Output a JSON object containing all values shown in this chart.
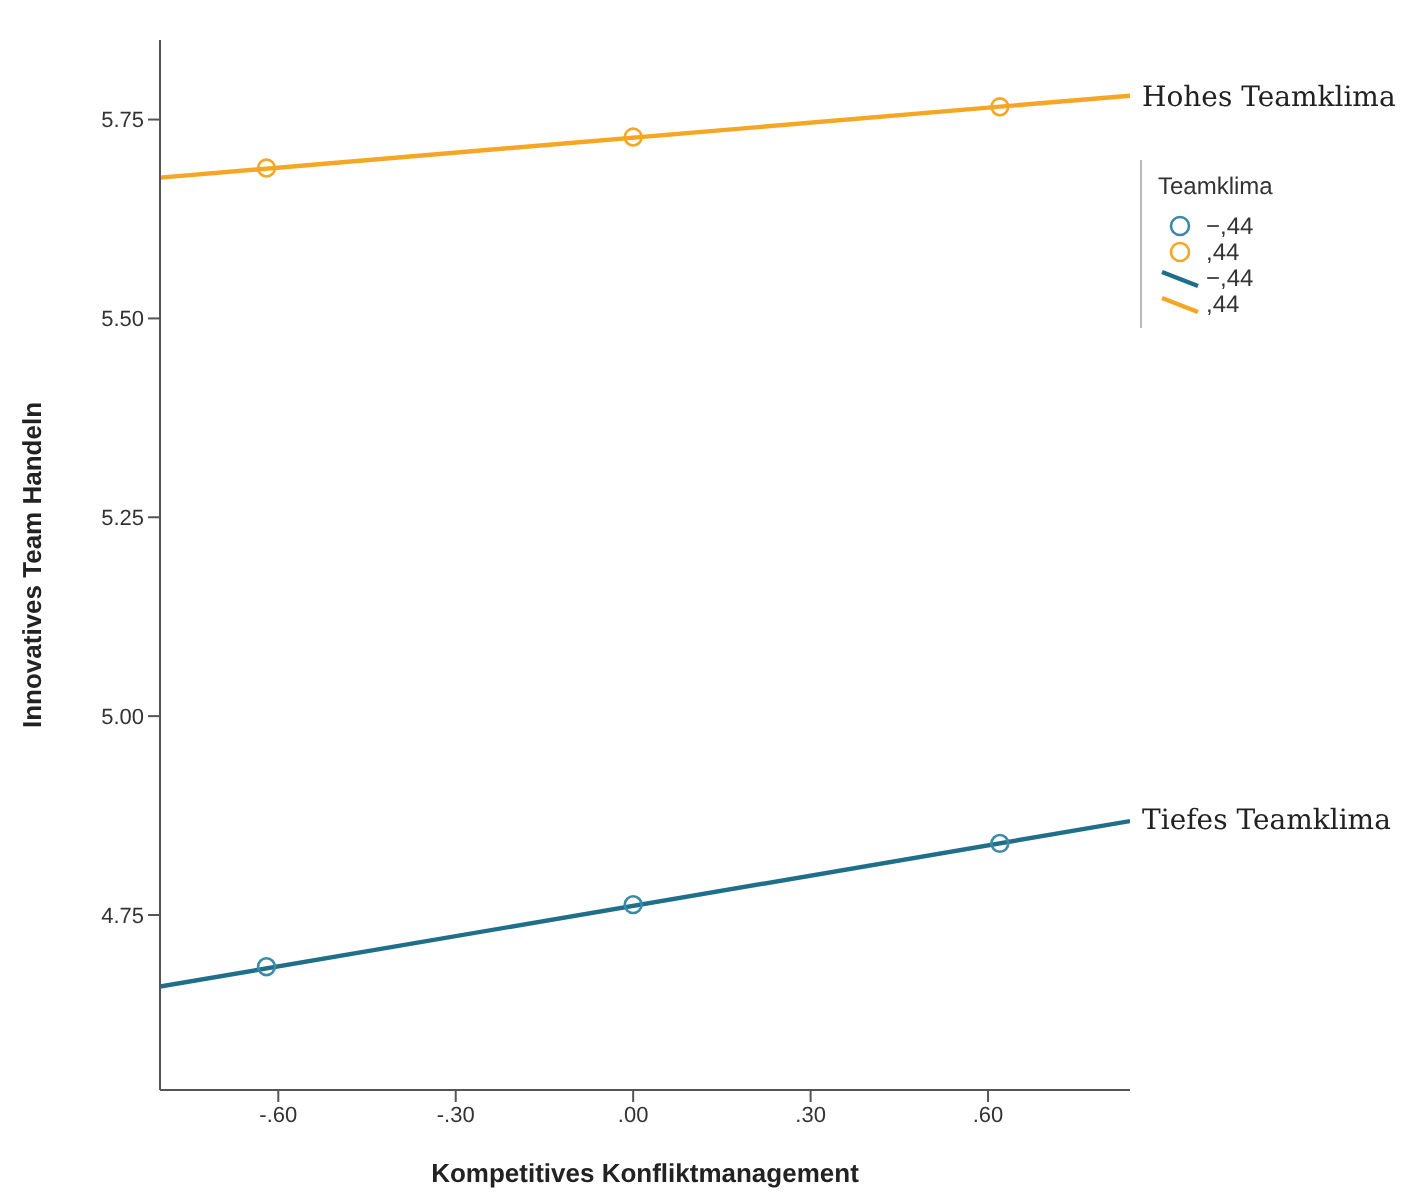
{
  "chart_data": {
    "type": "scatter",
    "xlabel": "Kompetitives Konfliktmanagement",
    "ylabel": "Innovatives Team Handeln",
    "legend_title": "Teamklima",
    "series": [
      {
        "name": "−,44",
        "color": "#3d8aa8",
        "x": [
          -0.62,
          0,
          0.62
        ],
        "values": [
          4.685,
          4.763,
          4.84
        ],
        "marker": "circle"
      },
      {
        "name": ",44",
        "color": "#f5a623",
        "x": [
          -0.62,
          0,
          0.62
        ],
        "values": [
          5.689,
          5.728,
          5.766
        ],
        "marker": "circle"
      },
      {
        "name": "−,44",
        "type": "line",
        "color": "#1f6f8b",
        "x": [
          -0.8,
          0.84
        ],
        "values": [
          4.66,
          4.868
        ],
        "marker": "none"
      },
      {
        "name": ",44",
        "type": "line",
        "color": "#f5a623",
        "x": [
          -0.8,
          0.84
        ],
        "values": [
          5.677,
          5.78
        ],
        "marker": "none"
      }
    ],
    "xlim": [
      -0.8,
      0.84
    ],
    "xticks": [
      {
        "value": -0.6,
        "label": "-.60"
      },
      {
        "value": -0.3,
        "label": "-.30"
      },
      {
        "value": 0,
        "label": ".00"
      },
      {
        "value": 0.3,
        "label": ".30"
      },
      {
        "value": 0.6,
        "label": ".60"
      }
    ],
    "ylim": [
      4.53,
      5.85
    ],
    "yticks": [
      {
        "value": 4.75,
        "label": "4.75"
      },
      {
        "value": 5,
        "label": "5.00"
      },
      {
        "value": 5.25,
        "label": "5.25"
      },
      {
        "value": 5.5,
        "label": "5.50"
      },
      {
        "value": 5.75,
        "label": "5.75"
      }
    ],
    "annotations": [
      {
        "text": "Hohes Teamklima",
        "x": 0.84,
        "y": 5.78
      },
      {
        "text": "Tiefes Teamklima",
        "x": 0.84,
        "y": 4.87
      }
    ],
    "legend": "right",
    "grid": false
  }
}
